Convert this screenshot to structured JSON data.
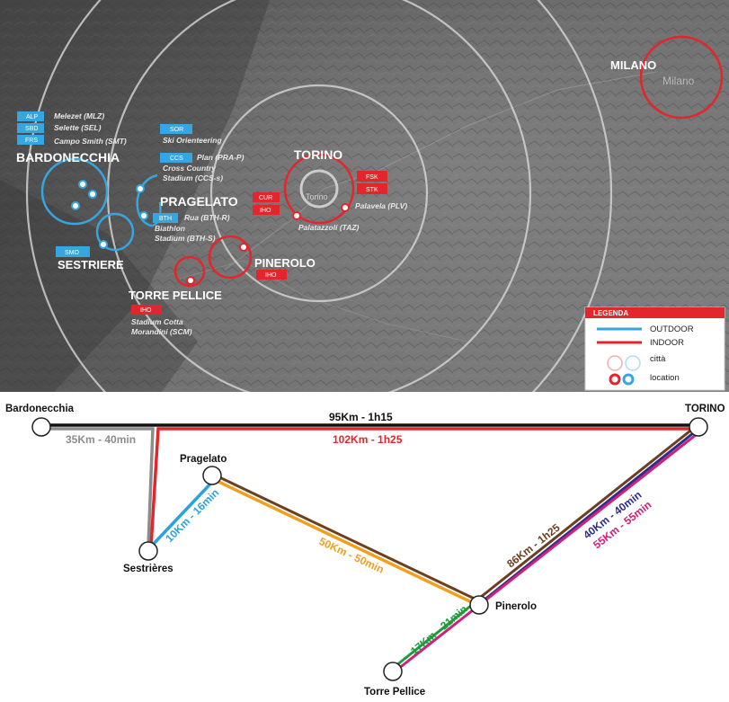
{
  "map": {
    "cities": {
      "torino": "TORINO",
      "milano": "MILANO",
      "milano_small": "Milano",
      "torino_small": "Torino",
      "bardonecchia": "BARDONECCHIA",
      "pragelato": "PRAGELATO",
      "sestriere": "SESTRIERE",
      "pinerolo": "PINEROLO",
      "torre_pellice": "TORRE PELLICE"
    },
    "venues": [
      {
        "code": "ALP",
        "name": "Melezet (MLZ)"
      },
      {
        "code": "SBD",
        "name": "Selette (SEL)"
      },
      {
        "code": "FRS",
        "name": "Campo Smith (SMT)"
      },
      {
        "code": "SOR",
        "name": "Ski Orienteering"
      },
      {
        "code": "CCS",
        "name": "Plan (PRA-P)"
      },
      {
        "code": "",
        "name": "Cross Country"
      },
      {
        "code": "",
        "name": "Stadium (CCS-s)"
      },
      {
        "code": "BTH",
        "name": "Rua (BTH-R)"
      },
      {
        "code": "",
        "name": "Biathlon"
      },
      {
        "code": "",
        "name": "Stadium (BTH-S)"
      },
      {
        "code": "SMO",
        "name": ""
      },
      {
        "code": "FSK",
        "name": ""
      },
      {
        "code": "STK",
        "name": ""
      },
      {
        "code": "CUR",
        "name": ""
      },
      {
        "code": "IHO",
        "name": ""
      },
      {
        "code": "IHO",
        "name": ""
      },
      {
        "code": "IHO",
        "name": ""
      }
    ],
    "indoor_venues": {
      "palavela": "Palavela (PLV)",
      "palatazzoli": "Palatazzoli (TAZ)",
      "stadium1": "Stadium Cotta",
      "stadium2": "Morandini (SCM)"
    },
    "legend": {
      "title": "LEGENDA",
      "outdoor": "OUTDOOR",
      "indoor": "INDOOR",
      "city": "città",
      "location": "location",
      "outdoor_color": "#35a6e0",
      "indoor_color": "#e3262b"
    }
  },
  "network": {
    "nodes": {
      "bardonecchia": "Bardonecchia",
      "torino": "TORINO",
      "pragelato": "Pragelato",
      "sestrieres": "Sestrières",
      "pinerolo": "Pinerolo",
      "torre_pellice": "Torre Pellice"
    },
    "routes": [
      {
        "label": "95Km - 1h15",
        "color": "#111111"
      },
      {
        "label": "35Km - 40min",
        "color": "#8c8c8c"
      },
      {
        "label": "102Km - 1h25",
        "color": "#e3262b"
      },
      {
        "label": "10Km - 16min",
        "color": "#2aa3dc"
      },
      {
        "label": "50Km - 50min",
        "color": "#f0a020"
      },
      {
        "label": "86Km - 1h25",
        "color": "#6b3f1f"
      },
      {
        "label": "40Km - 40min",
        "color": "#2c2d8a"
      },
      {
        "label": "55Km - 55min",
        "color": "#d0207a"
      },
      {
        "label": "17Km - 21min",
        "color": "#1e9c3c"
      }
    ]
  }
}
